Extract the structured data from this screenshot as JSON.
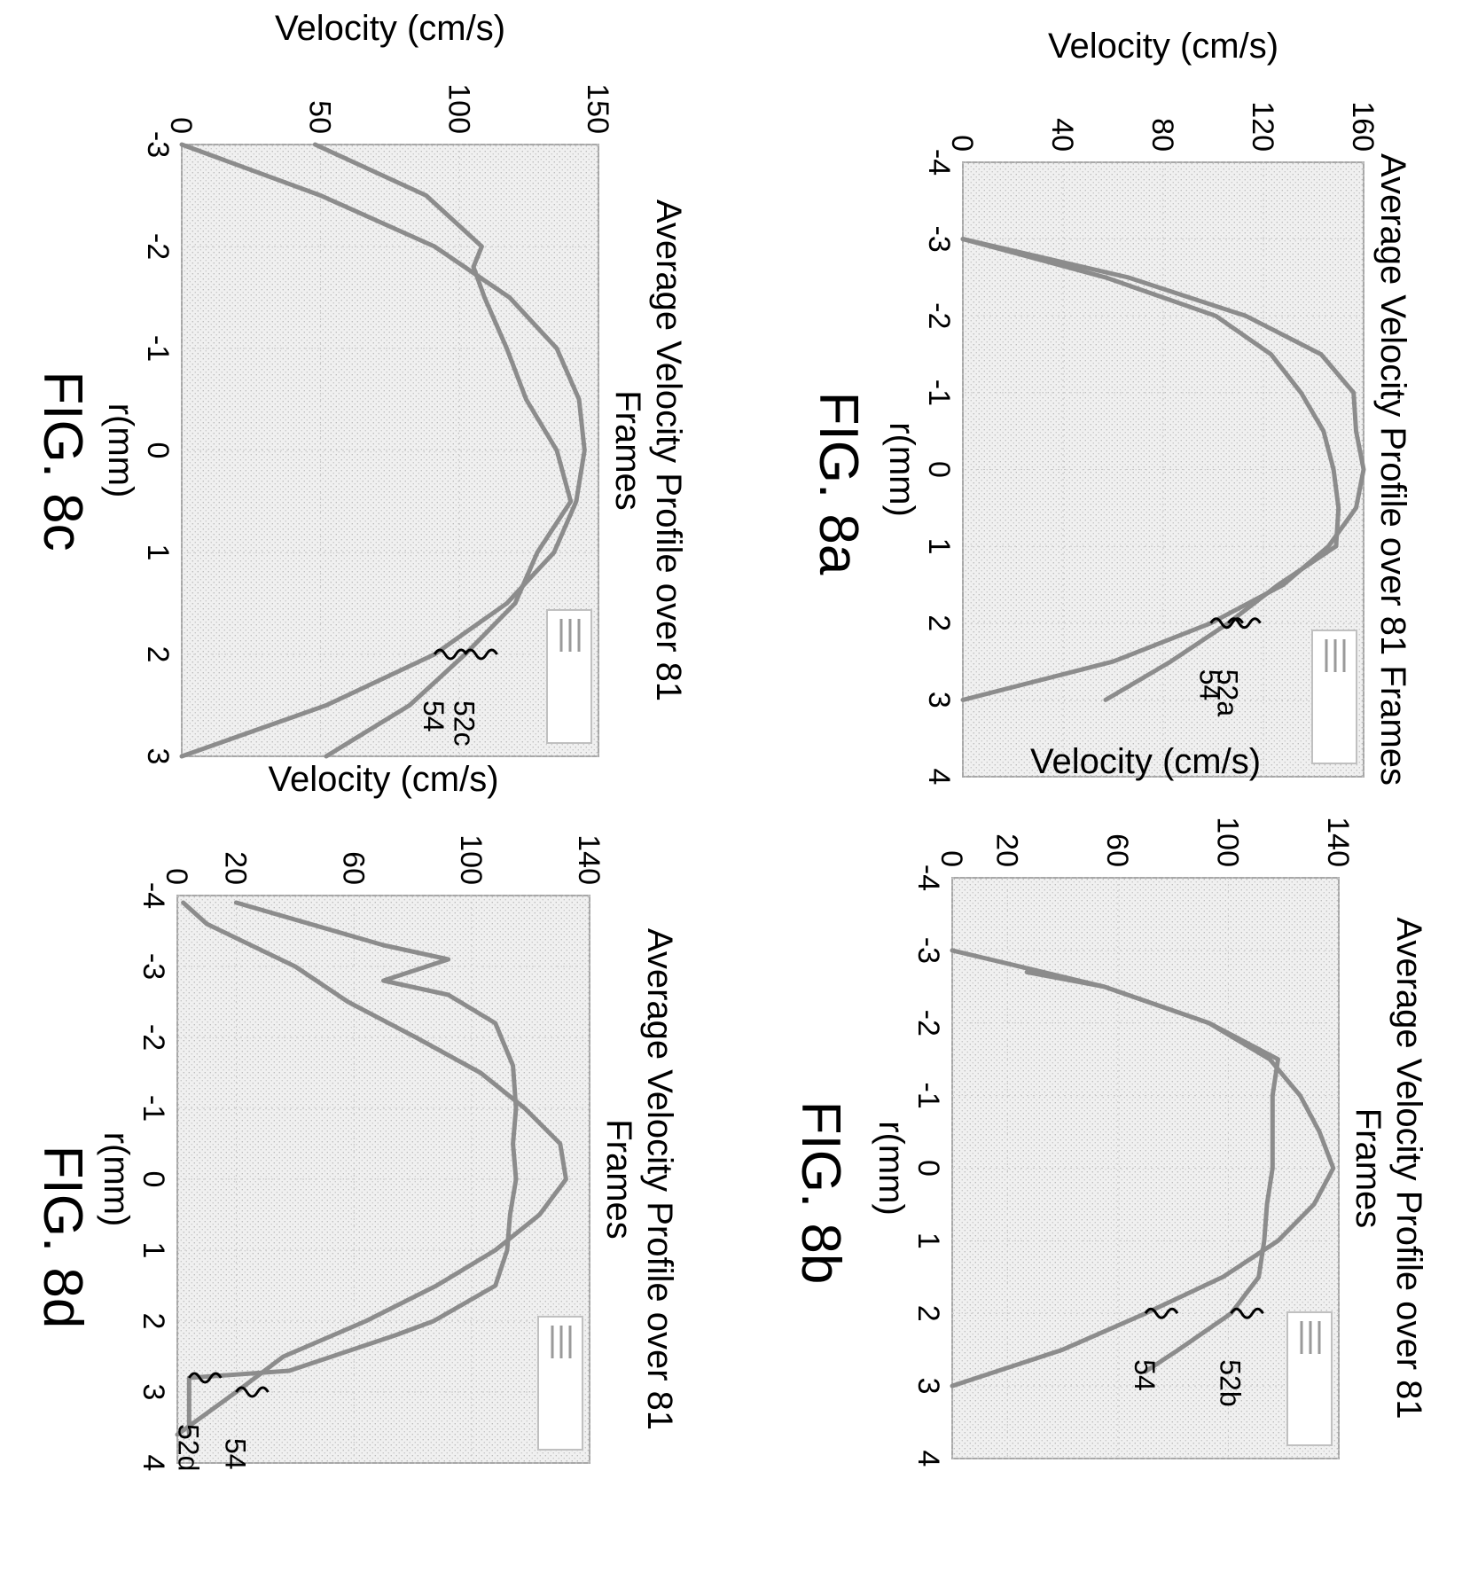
{
  "colors": {
    "curve": "#8c8c8c",
    "plot_bg": "#ececec",
    "frame": "#a8a8a8",
    "ink": "#000000"
  },
  "chart_data": [
    {
      "id": "8a",
      "type": "line",
      "figure_label": "FIG. 8a",
      "title": "Average Velocity Profile over 81 Frames",
      "title_lines": [
        "Average Velocity Profile over 81 Frames"
      ],
      "xlabel": "r(mm)",
      "ylabel": "Velocity (cm/s)",
      "xlim": [
        -4,
        4
      ],
      "ylim": [
        0,
        160
      ],
      "xticks": [
        -4,
        -3,
        -2,
        -1,
        0,
        1,
        2,
        3,
        4
      ],
      "yticks": [
        0,
        40,
        80,
        120,
        160
      ],
      "grid": true,
      "legend": "top-right",
      "series": [
        {
          "ref": "54",
          "x": [
            -3,
            -2.5,
            -2,
            -1.5,
            -1,
            -0.5,
            0,
            0.5,
            1,
            1.5,
            2,
            2.5,
            3
          ],
          "y": [
            0,
            66,
            113,
            143,
            156,
            157,
            160,
            157,
            146,
            128,
            99,
            60,
            0
          ]
        },
        {
          "ref": "52a",
          "x": [
            -3,
            -2.5,
            -2,
            -1.5,
            -1,
            -0.5,
            0,
            0.5,
            1,
            1.5,
            2,
            2.5,
            3
          ],
          "y": [
            0,
            57,
            101,
            123,
            135,
            144,
            148,
            150,
            149,
            126,
            106,
            83,
            57
          ]
        }
      ],
      "labels": [
        {
          "text": "52a",
          "series": "52a"
        },
        {
          "text": "54",
          "series": "54"
        }
      ]
    },
    {
      "id": "8b",
      "type": "line",
      "figure_label": "FIG. 8b",
      "title": "Average Velocity Profile over 81 Frames",
      "title_lines": [
        "Average Velocity Profile over 81",
        "Frames"
      ],
      "xlabel": "r(mm)",
      "ylabel": "Velocity (cm/s)",
      "xlim": [
        -4,
        4
      ],
      "ylim": [
        0,
        140
      ],
      "xticks": [
        -4,
        -3,
        -2,
        -1,
        0,
        1,
        2,
        3,
        4
      ],
      "yticks": [
        0,
        20,
        60,
        100,
        140
      ],
      "grid": true,
      "legend": "top-right",
      "series": [
        {
          "ref": "54",
          "x": [
            -3,
            -2.5,
            -2,
            -1.5,
            -1,
            -0.5,
            0,
            0.5,
            1,
            1.5,
            2,
            2.5,
            3
          ],
          "y": [
            0,
            55,
            93,
            115,
            126,
            133,
            138,
            131,
            118,
            98,
            70,
            40,
            0
          ]
        },
        {
          "ref": "52b",
          "x": [
            -2.7,
            -2.5,
            -2,
            -1.5,
            -1,
            -0.5,
            0,
            0.5,
            1,
            1.5,
            2,
            2.5,
            2.8
          ],
          "y": [
            27,
            55,
            93,
            118,
            116,
            116,
            116,
            114,
            113,
            111,
            101,
            82,
            70
          ]
        }
      ],
      "labels": [
        {
          "text": "52b",
          "series": "52b"
        },
        {
          "text": "54",
          "series": "54"
        }
      ]
    },
    {
      "id": "8c",
      "type": "line",
      "figure_label": "FIG. 8c",
      "title": "Average Velocity Profile over 81 Frames",
      "title_lines": [
        "Average Velocity Profile over 81",
        "Frames"
      ],
      "xlabel": "r(mm)",
      "ylabel": "Velocity (cm/s)",
      "xlim": [
        -3,
        3
      ],
      "ylim": [
        0,
        150
      ],
      "xticks": [
        -3,
        -2,
        -1,
        0,
        1,
        2,
        3
      ],
      "yticks": [
        0,
        50,
        100,
        150
      ],
      "grid": true,
      "legend": "top-right",
      "series": [
        {
          "ref": "54",
          "x": [
            -3,
            -2.5,
            -2,
            -1.5,
            -1,
            -0.5,
            0,
            0.5,
            1,
            1.5,
            2,
            2.5,
            3
          ],
          "y": [
            0,
            50,
            91,
            118,
            135,
            143,
            145,
            142,
            134,
            117,
            91,
            52,
            0
          ]
        },
        {
          "ref": "52c",
          "x": [
            -3,
            -2.5,
            -2,
            -1.8,
            -1.5,
            -1,
            -0.5,
            0,
            0.5,
            1,
            1.5,
            2,
            2.5,
            3
          ],
          "y": [
            48,
            88,
            108,
            105,
            109,
            117,
            124,
            135,
            140,
            128,
            120,
            102,
            82,
            52
          ]
        }
      ],
      "labels": [
        {
          "text": "52c",
          "series": "52c"
        },
        {
          "text": "54",
          "series": "54"
        }
      ]
    },
    {
      "id": "8d",
      "type": "line",
      "figure_label": "FIG. 8d",
      "title": "Average Velocity Profile over 81 Frames",
      "title_lines": [
        "Average Velocity Profile over 81",
        "Frames"
      ],
      "xlabel": "r(mm)",
      "ylabel": "Velocity (cm/s)",
      "xlim": [
        -4,
        4
      ],
      "ylim": [
        0,
        140
      ],
      "xticks": [
        -4,
        -3,
        -2,
        -1,
        0,
        1,
        2,
        3,
        4
      ],
      "yticks": [
        0,
        20,
        60,
        100,
        140
      ],
      "grid": true,
      "legend": "top-right",
      "series": [
        {
          "ref": "54",
          "x": [
            -3.9,
            -3.6,
            -3.4,
            -3.2,
            -3,
            -2.5,
            -2,
            -1.5,
            -1,
            -0.5,
            0,
            0.5,
            1,
            1.5,
            2,
            2.5,
            3,
            3.3,
            3.6
          ],
          "y": [
            2,
            10,
            20,
            30,
            40,
            58,
            81,
            103,
            118,
            130,
            132,
            123,
            108,
            88,
            64,
            36,
            20,
            10,
            0
          ]
        },
        {
          "ref": "52d",
          "x": [
            -3.9,
            -3.3,
            -3.1,
            -2.8,
            -2.6,
            -2.2,
            -1.6,
            -1,
            -0.5,
            0,
            0.5,
            1,
            1.5,
            2,
            2.2,
            2.7,
            2.8,
            3,
            3.6
          ],
          "y": [
            20,
            70,
            92,
            70,
            92,
            108,
            114,
            115,
            114,
            115,
            113,
            112,
            108,
            87,
            74,
            38,
            4,
            4,
            4
          ]
        }
      ],
      "labels": [
        {
          "text": "52d",
          "series": "52d"
        },
        {
          "text": "54",
          "series": "54"
        }
      ]
    }
  ]
}
